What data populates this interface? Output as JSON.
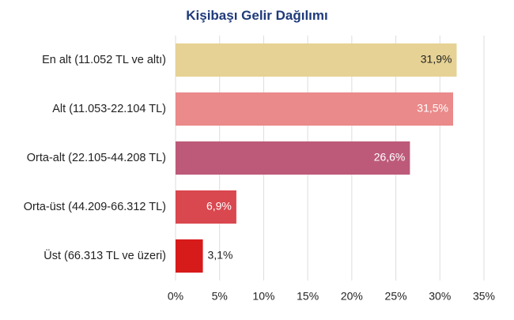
{
  "chart_data": {
    "type": "bar",
    "orientation": "horizontal",
    "title": "Kişibaşı Gelir Dağılımı",
    "categories": [
      "En alt (11.052 TL ve altı)",
      "Alt (11.053-22.104 TL)",
      "Orta-alt (22.105-44.208 TL)",
      "Orta-üst (44.209-66.312 TL)",
      "Üst (66.313 TL ve üzeri)"
    ],
    "values": [
      31.9,
      31.5,
      26.6,
      6.9,
      3.1
    ],
    "value_labels": [
      "31,9%",
      "31,5%",
      "26,6%",
      "6,9%",
      "3,1%"
    ],
    "colors": [
      "#e6d294",
      "#ea8a8a",
      "#bd5a7a",
      "#d9474f",
      "#d71a1a"
    ],
    "value_label_colors": [
      "#222222",
      "#ffffff",
      "#ffffff",
      "#ffffff",
      "#222222"
    ],
    "value_label_inside": [
      true,
      true,
      true,
      true,
      false
    ],
    "xlim": [
      0,
      35
    ],
    "x_ticks": [
      0,
      5,
      10,
      15,
      20,
      25,
      30,
      35
    ],
    "x_tick_labels": [
      "0%",
      "5%",
      "10%",
      "15%",
      "20%",
      "25%",
      "30%",
      "35%"
    ],
    "grid": true,
    "grid_color": "#dddddd",
    "title_color": "#1f3a7a",
    "xlabel": "",
    "ylabel": ""
  }
}
